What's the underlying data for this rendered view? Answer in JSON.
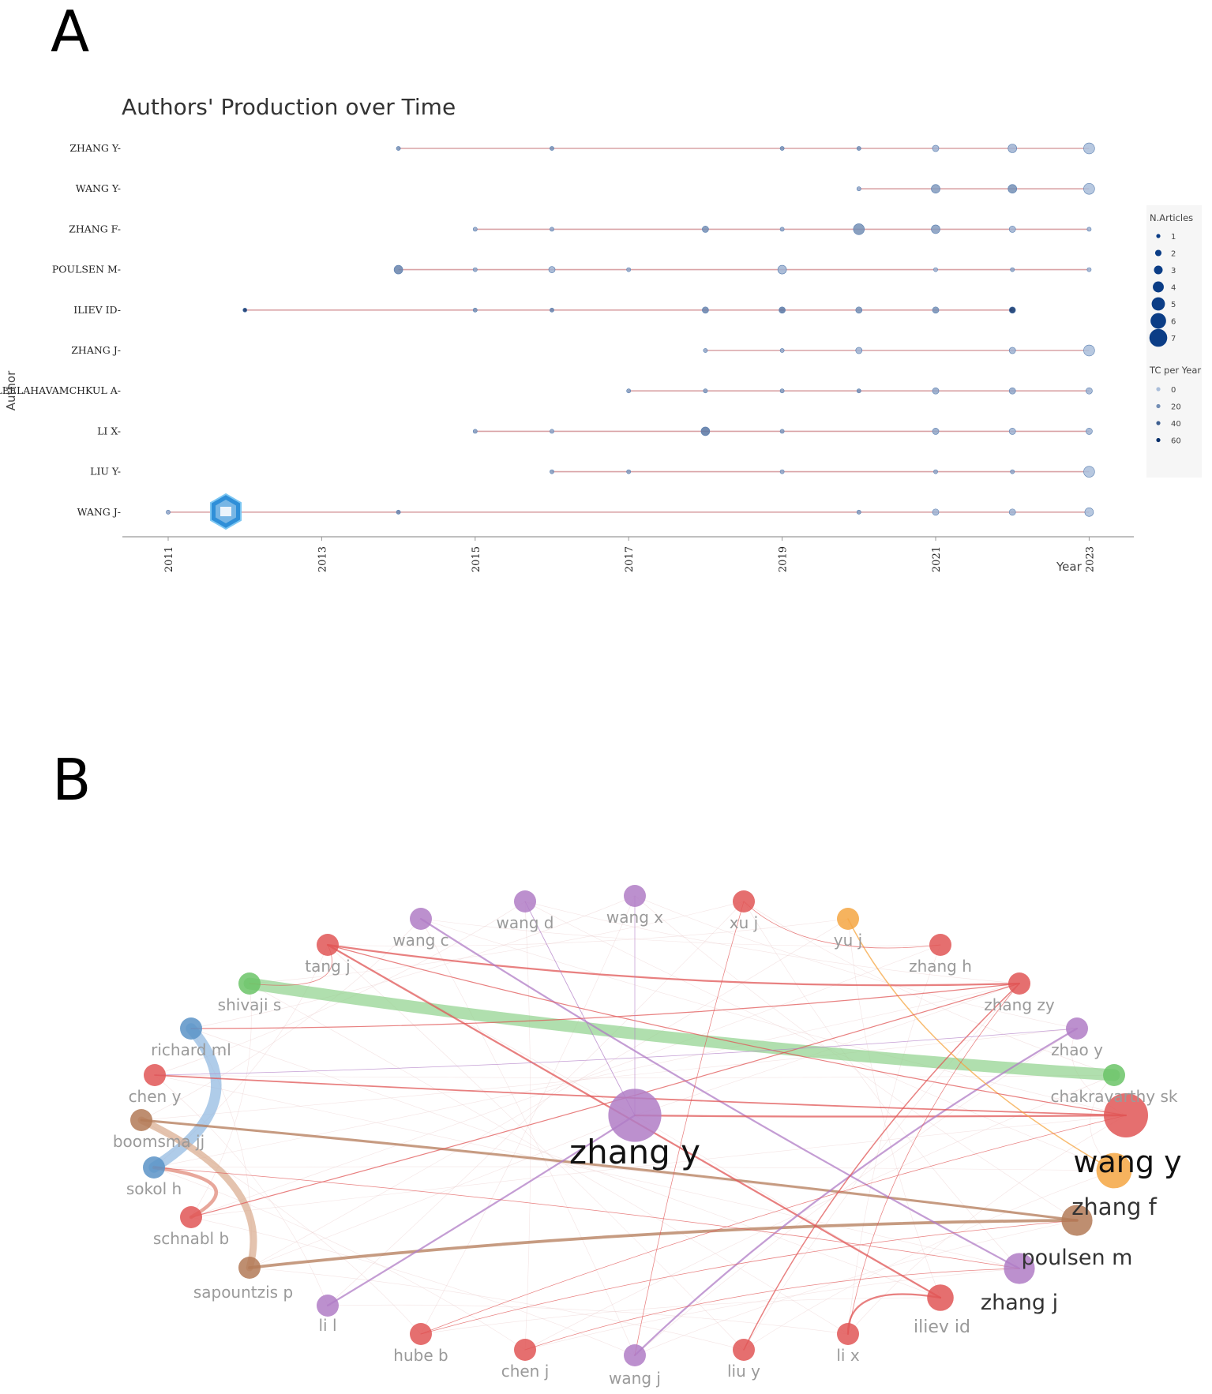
{
  "panels": {
    "a": "A",
    "b": "B"
  },
  "chart_data": [
    {
      "type": "scatter",
      "title": "Authors' Production over Time",
      "xlabel": "Year",
      "ylabel": "Author",
      "xlim": [
        2010.4,
        2023.6
      ],
      "x_ticks": [
        "2011",
        "2013",
        "2015",
        "2017",
        "2019",
        "2021",
        "2023"
      ],
      "authors": [
        "ZHANG Y",
        "WANG Y",
        "ZHANG F",
        "POULSEN M",
        "ILIEV ID",
        "ZHANG J",
        "LEELAHAVAMCHKUL A",
        "LI X",
        "LIU Y",
        "WANG J"
      ],
      "line_color": "#d9a3a6",
      "series": [
        {
          "author": "ZHANG Y",
          "points": [
            [
              2014,
              1,
              20
            ],
            [
              2016,
              1,
              20
            ],
            [
              2019,
              1,
              20
            ],
            [
              2020,
              1,
              20
            ],
            [
              2021,
              2,
              5
            ],
            [
              2022,
              3,
              5
            ],
            [
              2023,
              4,
              0
            ]
          ]
        },
        {
          "author": "WANG Y",
          "points": [
            [
              2020,
              1,
              10
            ],
            [
              2021,
              3,
              15
            ],
            [
              2022,
              3,
              20
            ],
            [
              2023,
              4,
              0
            ]
          ]
        },
        {
          "author": "ZHANG F",
          "points": [
            [
              2015,
              1,
              10
            ],
            [
              2016,
              1,
              10
            ],
            [
              2018,
              2,
              20
            ],
            [
              2019,
              1,
              10
            ],
            [
              2020,
              4,
              20
            ],
            [
              2021,
              3,
              15
            ],
            [
              2022,
              2,
              5
            ],
            [
              2023,
              1,
              5
            ]
          ]
        },
        {
          "author": "POULSEN M",
          "points": [
            [
              2014,
              3,
              25
            ],
            [
              2015,
              1,
              10
            ],
            [
              2016,
              2,
              5
            ],
            [
              2017,
              1,
              10
            ],
            [
              2019,
              3,
              5
            ],
            [
              2021,
              1,
              5
            ],
            [
              2022,
              1,
              10
            ],
            [
              2023,
              1,
              5
            ]
          ]
        },
        {
          "author": "ILIEV ID",
          "points": [
            [
              2012,
              1,
              60
            ],
            [
              2015,
              1,
              20
            ],
            [
              2016,
              1,
              25
            ],
            [
              2018,
              2,
              25
            ],
            [
              2019,
              2,
              30
            ],
            [
              2020,
              2,
              20
            ],
            [
              2021,
              2,
              20
            ],
            [
              2022,
              2,
              60
            ]
          ]
        },
        {
          "author": "ZHANG J",
          "points": [
            [
              2018,
              1,
              10
            ],
            [
              2019,
              1,
              10
            ],
            [
              2020,
              2,
              5
            ],
            [
              2022,
              2,
              5
            ],
            [
              2023,
              4,
              0
            ]
          ]
        },
        {
          "author": "LEELAHAVAMCHKUL A",
          "points": [
            [
              2017,
              1,
              15
            ],
            [
              2018,
              1,
              15
            ],
            [
              2019,
              1,
              15
            ],
            [
              2020,
              1,
              20
            ],
            [
              2021,
              2,
              10
            ],
            [
              2022,
              2,
              10
            ],
            [
              2023,
              2,
              5
            ]
          ]
        },
        {
          "author": "LI X",
          "points": [
            [
              2015,
              1,
              15
            ],
            [
              2016,
              1,
              10
            ],
            [
              2018,
              3,
              30
            ],
            [
              2019,
              1,
              15
            ],
            [
              2021,
              2,
              10
            ],
            [
              2022,
              2,
              5
            ],
            [
              2023,
              2,
              5
            ]
          ]
        },
        {
          "author": "LIU Y",
          "points": [
            [
              2016,
              1,
              15
            ],
            [
              2017,
              1,
              15
            ],
            [
              2019,
              1,
              10
            ],
            [
              2021,
              1,
              10
            ],
            [
              2022,
              1,
              10
            ],
            [
              2023,
              4,
              0
            ]
          ]
        },
        {
          "author": "WANG J",
          "points": [
            [
              2011,
              1,
              10
            ],
            [
              2014,
              1,
              25
            ],
            [
              2020,
              1,
              15
            ],
            [
              2021,
              2,
              5
            ],
            [
              2022,
              2,
              5
            ],
            [
              2023,
              3,
              0
            ]
          ]
        }
      ],
      "legend": {
        "size_title": "N.Articles",
        "size_values": [
          "1",
          "2",
          "3",
          "4",
          "5",
          "6",
          "7"
        ],
        "color_title": "TC per Year",
        "color_values": [
          "0",
          "20",
          "40",
          "60"
        ]
      }
    },
    {
      "type": "network",
      "nodes": [
        {
          "id": "zhang y",
          "label": "zhang y",
          "size": 6,
          "color": "#b07cc6",
          "tier": "big"
        },
        {
          "id": "wang y",
          "label": "wang y",
          "size": 5,
          "color": "#e05656",
          "tier": "big"
        },
        {
          "id": "zhang f",
          "label": "zhang f",
          "size": 4,
          "color": "#f5a642",
          "tier": "mid"
        },
        {
          "id": "poulsen m",
          "label": "poulsen m",
          "size": 3.5,
          "color": "#b37a57",
          "tier": "mid"
        },
        {
          "id": "zhang j",
          "label": "zhang j",
          "size": 3.5,
          "color": "#b07cc6",
          "tier": "mid"
        },
        {
          "id": "iliev id",
          "label": "iliev id",
          "size": 3,
          "color": "#e05656",
          "tier": "small"
        },
        {
          "id": "li x",
          "label": "li x",
          "size": 2.5,
          "color": "#e05656",
          "tier": "small"
        },
        {
          "id": "liu y",
          "label": "liu y",
          "size": 2.5,
          "color": "#e05656",
          "tier": "small"
        },
        {
          "id": "wang j",
          "label": "wang j",
          "size": 2.5,
          "color": "#b07cc6",
          "tier": "small"
        },
        {
          "id": "chen j",
          "label": "chen j",
          "size": 2.5,
          "color": "#e05656",
          "tier": "small"
        },
        {
          "id": "hube b",
          "label": "hube b",
          "size": 2.5,
          "color": "#e05656",
          "tier": "small"
        },
        {
          "id": "li l",
          "label": "li l",
          "size": 2.5,
          "color": "#b07cc6",
          "tier": "small"
        },
        {
          "id": "sapountzis p",
          "label": "sapountzis p",
          "size": 2.5,
          "color": "#b37a57",
          "tier": "small"
        },
        {
          "id": "schnabl b",
          "label": "schnabl b",
          "size": 2.5,
          "color": "#e05656",
          "tier": "small"
        },
        {
          "id": "sokol h",
          "label": "sokol h",
          "size": 2.5,
          "color": "#5b93c7",
          "tier": "small"
        },
        {
          "id": "boomsma jj",
          "label": "boomsma jj",
          "size": 2.5,
          "color": "#b37a57",
          "tier": "small"
        },
        {
          "id": "chen y",
          "label": "chen y",
          "size": 2.5,
          "color": "#e05656",
          "tier": "small"
        },
        {
          "id": "richard ml",
          "label": "richard ml",
          "size": 2.5,
          "color": "#5b93c7",
          "tier": "small"
        },
        {
          "id": "shivaji s",
          "label": "shivaji s",
          "size": 2.5,
          "color": "#6bc467",
          "tier": "small"
        },
        {
          "id": "tang j",
          "label": "tang j",
          "size": 2.5,
          "color": "#e05656",
          "tier": "small"
        },
        {
          "id": "wang c",
          "label": "wang c",
          "size": 2.5,
          "color": "#b07cc6",
          "tier": "small"
        },
        {
          "id": "wang d",
          "label": "wang d",
          "size": 2.5,
          "color": "#b07cc6",
          "tier": "small"
        },
        {
          "id": "wang x",
          "label": "wang x",
          "size": 2.5,
          "color": "#b07cc6",
          "tier": "small"
        },
        {
          "id": "xu j",
          "label": "xu j",
          "size": 2.5,
          "color": "#e05656",
          "tier": "small"
        },
        {
          "id": "yu j",
          "label": "yu j",
          "size": 2.5,
          "color": "#f5a642",
          "tier": "small"
        },
        {
          "id": "zhang h",
          "label": "zhang h",
          "size": 2.5,
          "color": "#e05656",
          "tier": "small"
        },
        {
          "id": "zhang zy",
          "label": "zhang zy",
          "size": 2.5,
          "color": "#e05656",
          "tier": "small"
        },
        {
          "id": "zhao y",
          "label": "zhao y",
          "size": 2.5,
          "color": "#b07cc6",
          "tier": "small"
        },
        {
          "id": "chakravarthy sk",
          "label": "chakravarthy sk",
          "size": 2.5,
          "color": "#6bc467",
          "tier": "small"
        }
      ],
      "edges": [
        {
          "source": "shivaji s",
          "target": "chakravarthy sk",
          "weight": 10,
          "color": "#8fd18b"
        },
        {
          "source": "richard ml",
          "target": "sokol h",
          "weight": 9,
          "color": "#8db7e0"
        },
        {
          "source": "boomsma jj",
          "target": "sapountzis p",
          "weight": 6,
          "color": "#d9a98b"
        },
        {
          "source": "sapountzis p",
          "target": "poulsen m",
          "weight": 2.5,
          "color": "#b37a57"
        },
        {
          "source": "boomsma jj",
          "target": "poulsen m",
          "weight": 2,
          "color": "#b37a57"
        },
        {
          "source": "tang j",
          "target": "zhang zy",
          "weight": 1.5,
          "color": "#e05656"
        },
        {
          "source": "tang j",
          "target": "iliev id",
          "weight": 1.5,
          "color": "#e05656"
        },
        {
          "source": "wang c",
          "target": "zhang j",
          "weight": 1.5,
          "color": "#b07cc6"
        },
        {
          "source": "li l",
          "target": "zhang y",
          "weight": 1.5,
          "color": "#b07cc6"
        },
        {
          "source": "zhang y",
          "target": "wang y",
          "weight": 1.5,
          "color": "#e05656"
        },
        {
          "source": "wang j",
          "target": "zhao y",
          "weight": 1.5,
          "color": "#b07cc6"
        },
        {
          "source": "li x",
          "target": "iliev id",
          "weight": 1.5,
          "color": "#e05656"
        },
        {
          "source": "chen y",
          "target": "wang y",
          "weight": 1.2,
          "color": "#e05656"
        },
        {
          "source": "liu y",
          "target": "zhang zy",
          "weight": 1,
          "color": "#e05656"
        },
        {
          "source": "yu j",
          "target": "zhang f",
          "weight": 1,
          "color": "#f5a642"
        },
        {
          "source": "schnabl b",
          "target": "zhang zy",
          "weight": 0.8,
          "color": "#e05656"
        },
        {
          "source": "sokol h",
          "target": "schnabl b",
          "weight": 3,
          "color": "#e08a7a"
        },
        {
          "source": "richard ml",
          "target": "zhang zy",
          "weight": 0.8,
          "color": "#e05656"
        },
        {
          "source": "tang j",
          "target": "wang y",
          "weight": 0.8,
          "color": "#e05656"
        },
        {
          "source": "wang d",
          "target": "zhang y",
          "weight": 0.6,
          "color": "#b07cc6"
        },
        {
          "source": "xu j",
          "target": "wang j",
          "weight": 0.5,
          "color": "#e05656"
        },
        {
          "source": "chen j",
          "target": "zhang j",
          "weight": 0.5,
          "color": "#e05656"
        },
        {
          "source": "hube b",
          "target": "wang y",
          "weight": 0.5,
          "color": "#e05656"
        },
        {
          "source": "shivaji s",
          "target": "tang j",
          "weight": 0.5,
          "color": "#e05656"
        },
        {
          "source": "xu j",
          "target": "zhang h",
          "weight": 0.5,
          "color": "#e05656"
        },
        {
          "source": "wang x",
          "target": "zhang y",
          "weight": 0.5,
          "color": "#b07cc6"
        },
        {
          "source": "chen y",
          "target": "zhao y",
          "weight": 0.5,
          "color": "#b07cc6"
        },
        {
          "source": "sokol h",
          "target": "zhang j",
          "weight": 0.5,
          "color": "#e05656"
        },
        {
          "source": "li x",
          "target": "zhang zy",
          "weight": 0.5,
          "color": "#e05656"
        },
        {
          "source": "hube b",
          "target": "poulsen m",
          "weight": 0.5,
          "color": "#e05656"
        }
      ]
    }
  ]
}
